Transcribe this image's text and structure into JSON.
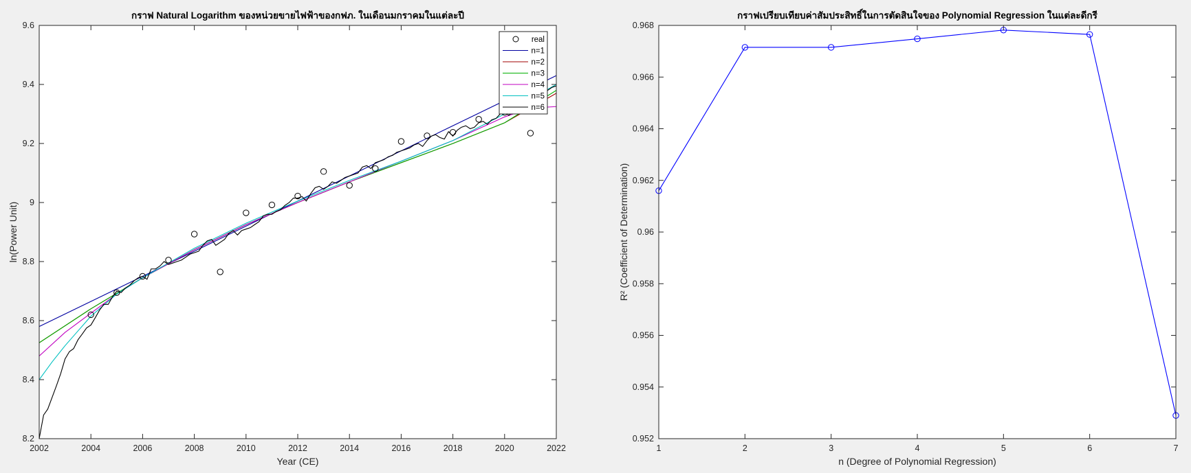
{
  "chart_data": [
    {
      "type": "scatter",
      "title": "กราฟ Natural Logarithm ของหน่วยขายไฟฟ้าของกฟภ. ในเดือนมกราคมในแต่ละปี",
      "xlabel": "Year (CE)",
      "ylabel": "ln(Power Unit)",
      "xlim": [
        2002,
        2022
      ],
      "ylim": [
        8.2,
        9.6
      ],
      "xticks": [
        2002,
        2004,
        2006,
        2008,
        2010,
        2012,
        2014,
        2016,
        2018,
        2020,
        2022
      ],
      "xtick_labels": [
        "2002",
        "2004",
        "2006",
        "2008",
        "2010",
        "2012",
        "2014",
        "2016",
        "2018",
        "2020",
        "2022"
      ],
      "yticks": [
        8.2,
        8.4,
        8.6,
        8.8,
        9.0,
        9.2,
        9.4,
        9.6
      ],
      "ytick_labels": [
        "8.2",
        "8.4",
        "8.6",
        "8.8",
        "9",
        "9.2",
        "9.4",
        "9.6"
      ],
      "grid": false,
      "legend_position": "top-right",
      "real_points": {
        "name": "real",
        "color": "#000000",
        "x": [
          2004,
          2005,
          2006,
          2007,
          2008,
          2009,
          2010,
          2011,
          2012,
          2013,
          2014,
          2015,
          2016,
          2017,
          2018,
          2019,
          2020,
          2021
        ],
        "y": [
          8.62,
          8.695,
          8.75,
          8.805,
          8.893,
          8.765,
          8.965,
          8.992,
          9.022,
          9.105,
          9.058,
          9.115,
          9.207,
          9.226,
          9.238,
          9.282,
          9.305,
          9.235
        ]
      },
      "series": [
        {
          "name": "n=1",
          "color": "#0000a0",
          "x": [
            2002,
            2022
          ],
          "y": [
            8.58,
            9.43
          ]
        },
        {
          "name": "n=2",
          "color": "#a00000",
          "x": [
            2002,
            2004,
            2006,
            2008,
            2010,
            2012,
            2014,
            2016,
            2018,
            2020,
            2022
          ],
          "y": [
            8.525,
            8.64,
            8.745,
            8.84,
            8.925,
            9.0,
            9.07,
            9.135,
            9.2,
            9.27,
            9.37
          ]
        },
        {
          "name": "n=3",
          "color": "#00b000",
          "x": [
            2002,
            2004,
            2006,
            2008,
            2010,
            2012,
            2014,
            2016,
            2018,
            2020,
            2022
          ],
          "y": [
            8.525,
            8.64,
            8.745,
            8.84,
            8.925,
            9.0,
            9.07,
            9.135,
            9.2,
            9.27,
            9.38
          ]
        },
        {
          "name": "n=4",
          "color": "#c000c0",
          "x": [
            2002,
            2003,
            2004,
            2005,
            2006,
            2008,
            2010,
            2012,
            2014,
            2016,
            2018,
            2019,
            2020,
            2021,
            2022
          ],
          "y": [
            8.48,
            8.56,
            8.625,
            8.69,
            8.745,
            8.84,
            8.925,
            9.0,
            9.07,
            9.14,
            9.21,
            9.25,
            9.29,
            9.32,
            9.325
          ]
        },
        {
          "name": "n=5",
          "color": "#00c0c0",
          "x": [
            2002,
            2002.5,
            2003,
            2003.5,
            2004,
            2005,
            2006,
            2008,
            2010,
            2012,
            2014,
            2016,
            2018,
            2020,
            2021,
            2022
          ],
          "y": [
            8.4,
            8.46,
            8.515,
            8.565,
            8.615,
            8.69,
            8.745,
            8.845,
            8.93,
            9.005,
            9.075,
            9.14,
            9.21,
            9.3,
            9.35,
            9.4
          ]
        },
        {
          "name": "n=6",
          "color": "#000000",
          "x": [
            2002,
            2002.17,
            2002.33,
            2002.5,
            2002.67,
            2002.83,
            2003,
            2003.17,
            2003.33,
            2003.5,
            2003.67,
            2003.83,
            2004,
            2004.17,
            2004.33,
            2004.5,
            2004.67,
            2004.83,
            2005,
            2005.17,
            2005.33,
            2005.5,
            2005.67,
            2005.83,
            2006,
            2006.17,
            2006.33,
            2006.5,
            2006.67,
            2006.83,
            2007,
            2007.17,
            2007.33,
            2007.5,
            2007.67,
            2007.83,
            2008,
            2008.17,
            2008.33,
            2008.5,
            2008.67,
            2008.83,
            2009,
            2009.17,
            2009.33,
            2009.5,
            2009.67,
            2009.83,
            2010,
            2010.17,
            2010.33,
            2010.5,
            2010.67,
            2010.83,
            2011,
            2011.17,
            2011.33,
            2011.5,
            2011.67,
            2011.83,
            2012,
            2012.17,
            2012.33,
            2012.5,
            2012.67,
            2012.83,
            2013,
            2013.17,
            2013.33,
            2013.5,
            2013.67,
            2013.83,
            2014,
            2014.17,
            2014.33,
            2014.5,
            2014.67,
            2014.83,
            2015,
            2015.17,
            2015.33,
            2015.5,
            2015.67,
            2015.83,
            2016,
            2016.17,
            2016.33,
            2016.5,
            2016.67,
            2016.83,
            2017,
            2017.17,
            2017.33,
            2017.5,
            2017.67,
            2017.83,
            2018,
            2018.17,
            2018.33,
            2018.5,
            2018.67,
            2018.83,
            2019,
            2019.17,
            2019.33,
            2019.5,
            2019.67,
            2019.83,
            2020,
            2020.17,
            2020.33,
            2020.5,
            2020.67,
            2020.83,
            2021,
            2021.17,
            2021.33,
            2021.5,
            2021.67,
            2021.83,
            2022
          ],
          "y": [
            8.2,
            8.28,
            8.3,
            8.34,
            8.38,
            8.42,
            8.47,
            8.495,
            8.505,
            8.535,
            8.555,
            8.575,
            8.585,
            8.61,
            8.635,
            8.655,
            8.655,
            8.68,
            8.7,
            8.695,
            8.71,
            8.72,
            8.735,
            8.745,
            8.75,
            8.74,
            8.775,
            8.775,
            8.785,
            8.8,
            8.79,
            8.795,
            8.8,
            8.805,
            8.815,
            8.825,
            8.83,
            8.835,
            8.855,
            8.87,
            8.875,
            8.855,
            8.865,
            8.875,
            8.895,
            8.905,
            8.89,
            8.905,
            8.91,
            8.915,
            8.925,
            8.935,
            8.955,
            8.96,
            8.96,
            8.97,
            8.975,
            8.99,
            9.0,
            9.015,
            9.015,
            9.02,
            9.005,
            9.03,
            9.05,
            9.055,
            9.045,
            9.055,
            9.07,
            9.065,
            9.075,
            9.085,
            9.09,
            9.095,
            9.1,
            9.12,
            9.125,
            9.115,
            9.135,
            9.14,
            9.145,
            9.155,
            9.16,
            9.17,
            9.175,
            9.18,
            9.185,
            9.195,
            9.2,
            9.19,
            9.21,
            9.225,
            9.23,
            9.22,
            9.215,
            9.24,
            9.225,
            9.245,
            9.255,
            9.26,
            9.25,
            9.255,
            9.27,
            9.275,
            9.265,
            9.28,
            9.285,
            9.3,
            9.305,
            9.295,
            9.31,
            9.32,
            9.33,
            9.34,
            9.36,
            9.35,
            9.37,
            9.365,
            9.38,
            9.39,
            9.395
          ]
        }
      ]
    },
    {
      "type": "line",
      "title": "กราฟเปรียบเทียบค่าสัมประสิทธิ์ในการตัดสินใจของ Polynomial Regression ในแต่ละดีกรี",
      "xlabel": "n (Degree of Polynomial Regression)",
      "ylabel": "R² (Coefficient of Determination)",
      "xlim": [
        1,
        7
      ],
      "ylim": [
        0.952,
        0.968
      ],
      "xticks": [
        1,
        2,
        3,
        4,
        5,
        6,
        7
      ],
      "xtick_labels": [
        "1",
        "2",
        "3",
        "4",
        "5",
        "6",
        "7"
      ],
      "yticks": [
        0.952,
        0.954,
        0.956,
        0.958,
        0.96,
        0.962,
        0.964,
        0.966,
        0.968
      ],
      "ytick_labels": [
        "0.952",
        "0.954",
        "0.956",
        "0.958",
        "0.96",
        "0.962",
        "0.964",
        "0.966",
        "0.968"
      ],
      "grid": false,
      "line_color": "#0000ff",
      "x": [
        1,
        2,
        3,
        4,
        5,
        6,
        7
      ],
      "y": [
        0.9616,
        0.96715,
        0.96715,
        0.96748,
        0.96782,
        0.96765,
        0.9529
      ]
    }
  ]
}
